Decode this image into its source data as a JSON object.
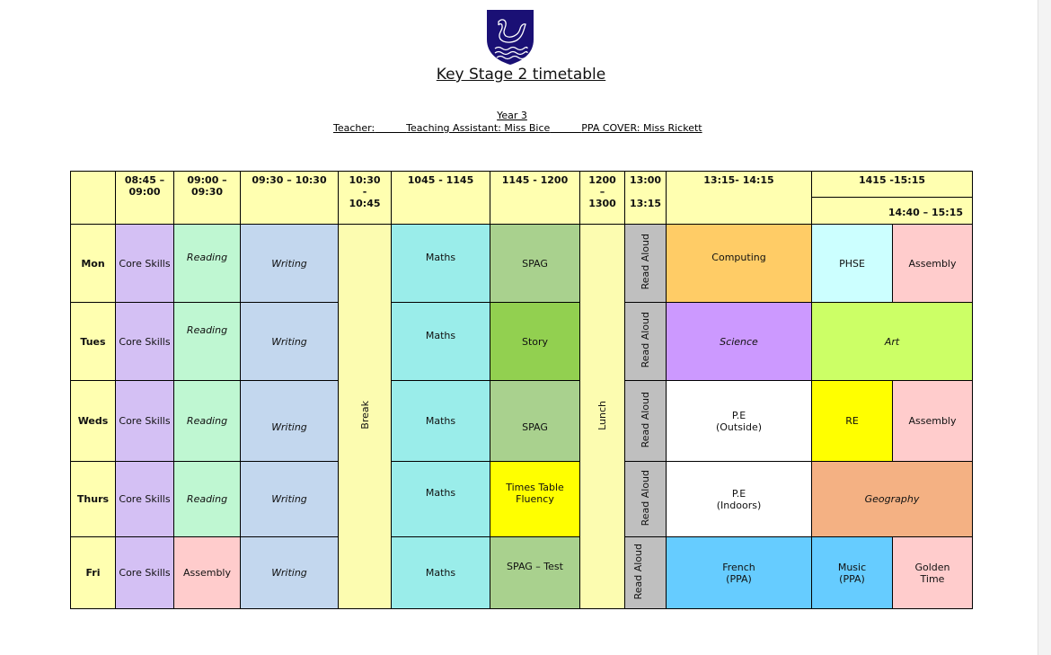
{
  "title": "Key Stage 2 timetable",
  "year": " Year 3",
  "staff": {
    "teacher": "Teacher:",
    "ta": "Teaching Assistant: Miss Bice",
    "ppa": "PPA COVER: Miss Rickett"
  },
  "headers": {
    "c1": "08:45 – 09:00",
    "c2": "09:00 – 09:30",
    "c3": "09:30 – 10:30",
    "c4a": "10:30",
    "c4b": "-",
    "c4c": "10:45",
    "c5": "1045 - 1145",
    "c6": "1145 - 1200",
    "c7a": "1200",
    "c7b": "–",
    "c7c": "1300",
    "c8a": "13:00",
    "c8b": "13:15",
    "c9": "13:15- 14:15",
    "c10": "1415 -15:15",
    "c10b": "14:40 – 15:15"
  },
  "break": "Break",
  "lunch": "Lunch",
  "days": [
    {
      "day": "Mon",
      "core": "Core Skills",
      "reading": "Reading",
      "writing": "Writing",
      "maths": "Maths",
      "p6": "SPAG",
      "read": "Read Aloud",
      "afternoon": "Computing",
      "late1": "PHSE",
      "late2": "Assembly"
    },
    {
      "day": "Tues",
      "core": "Core Skills",
      "reading": "Reading",
      "writing": "Writing",
      "maths": "Maths",
      "p6": "Story",
      "read": "Read Aloud",
      "afternoon": "Science",
      "late1": "Art"
    },
    {
      "day": "Weds",
      "core": "Core Skills",
      "reading": "Reading",
      "writing": "Writing",
      "maths": "Maths",
      "p6": "SPAG",
      "read": "Read Aloud",
      "afternoon": "P.E\n(Outside)",
      "late1": "RE",
      "late2": "Assembly"
    },
    {
      "day": "Thurs",
      "core": "Core Skills",
      "reading": "Reading",
      "writing": "Writing",
      "maths": "Maths",
      "p6": "Times Table Fluency",
      "read": "Read Aloud",
      "afternoon": "P.E\n(Indoors)",
      "late1": "Geography"
    },
    {
      "day": "Fri",
      "core": "Core Skills",
      "reading": "Assembly",
      "writing": "Writing",
      "maths": "Maths",
      "p6": "SPAG – Test",
      "read": "Read Aloud",
      "afternoon": "French\n(PPA)",
      "late1": "Music\n(PPA)",
      "late2": "Golden Time"
    }
  ],
  "colors": {
    "header": "#ffffb0",
    "core": "#d4c0f4",
    "reading": "#bff7d2",
    "writing": "#c3d7ee",
    "maths": "#9aedea",
    "spag": "#a9d18e",
    "story": "#92d050",
    "read": "#bfbfbf",
    "computing": "#ffcc66",
    "phse": "#ccffff",
    "assembly": "#ffcccc",
    "science": "#cc99ff",
    "art": "#ccff66",
    "re": "#ffff00",
    "geography": "#f4b183",
    "french": "#66ccff",
    "tt": "#ffff00",
    "logo": "#1a1075"
  }
}
